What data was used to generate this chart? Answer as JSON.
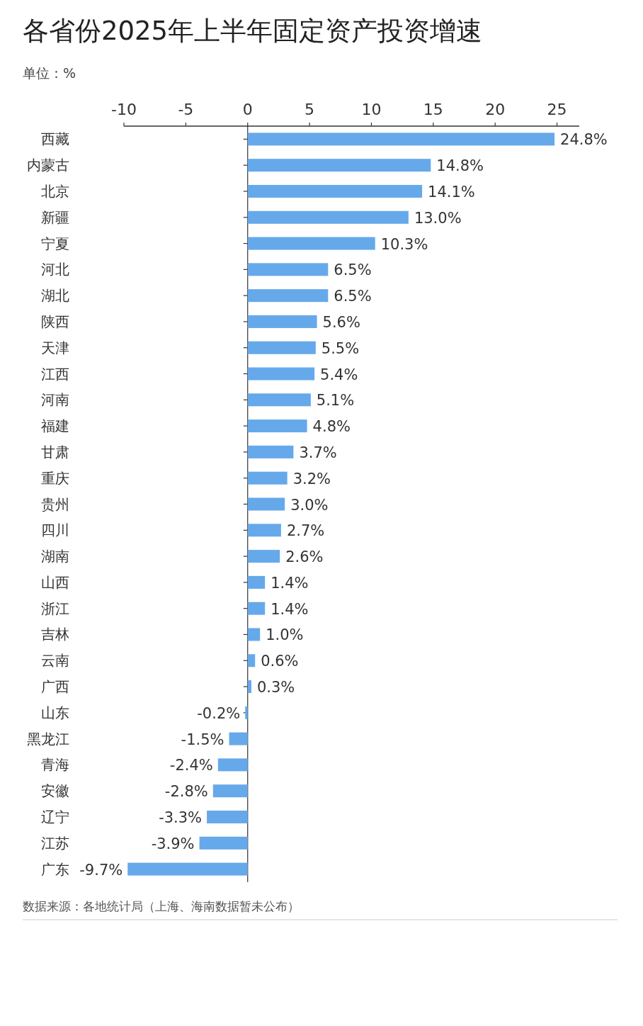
{
  "chart_data": {
    "type": "bar",
    "orientation": "horizontal",
    "title": "各省份2025年上半年固定资产投资增速",
    "subtitle": "单位：%",
    "annotations": [
      "数据来源：各地统计局（上海、海南数据暂未公布）"
    ],
    "categories": [
      "西藏",
      "内蒙古",
      "北京",
      "新疆",
      "宁夏",
      "河北",
      "湖北",
      "陕西",
      "天津",
      "江西",
      "河南",
      "福建",
      "甘肃",
      "重庆",
      "贵州",
      "四川",
      "湖南",
      "山西",
      "浙江",
      "吉林",
      "云南",
      "广西",
      "山东",
      "黑龙江",
      "青海",
      "安徽",
      "辽宁",
      "江苏",
      "广东"
    ],
    "values": [
      24.8,
      14.8,
      14.1,
      13.0,
      10.3,
      6.5,
      6.5,
      5.6,
      5.5,
      5.4,
      5.1,
      4.8,
      3.7,
      3.2,
      3.0,
      2.7,
      2.6,
      1.4,
      1.4,
      1.0,
      0.6,
      0.3,
      -0.2,
      -1.5,
      -2.4,
      -2.8,
      -3.3,
      -3.9,
      -9.7
    ],
    "value_labels": [
      "24.8%",
      "14.8%",
      "14.1%",
      "13.0%",
      "10.3%",
      "6.5%",
      "6.5%",
      "5.6%",
      "5.5%",
      "5.4%",
      "5.1%",
      "4.8%",
      "3.7%",
      "3.2%",
      "3.0%",
      "2.7%",
      "2.6%",
      "1.4%",
      "1.4%",
      "1.0%",
      "0.6%",
      "0.3%",
      "-0.2%",
      "-1.5%",
      "-2.4%",
      "-2.8%",
      "-3.3%",
      "-3.9%",
      "-9.7%"
    ],
    "color": "#66a9ea",
    "xlim": [
      -10,
      26.8
    ],
    "xticks": [
      -10,
      -5,
      0,
      5,
      10,
      15,
      20,
      25
    ]
  }
}
